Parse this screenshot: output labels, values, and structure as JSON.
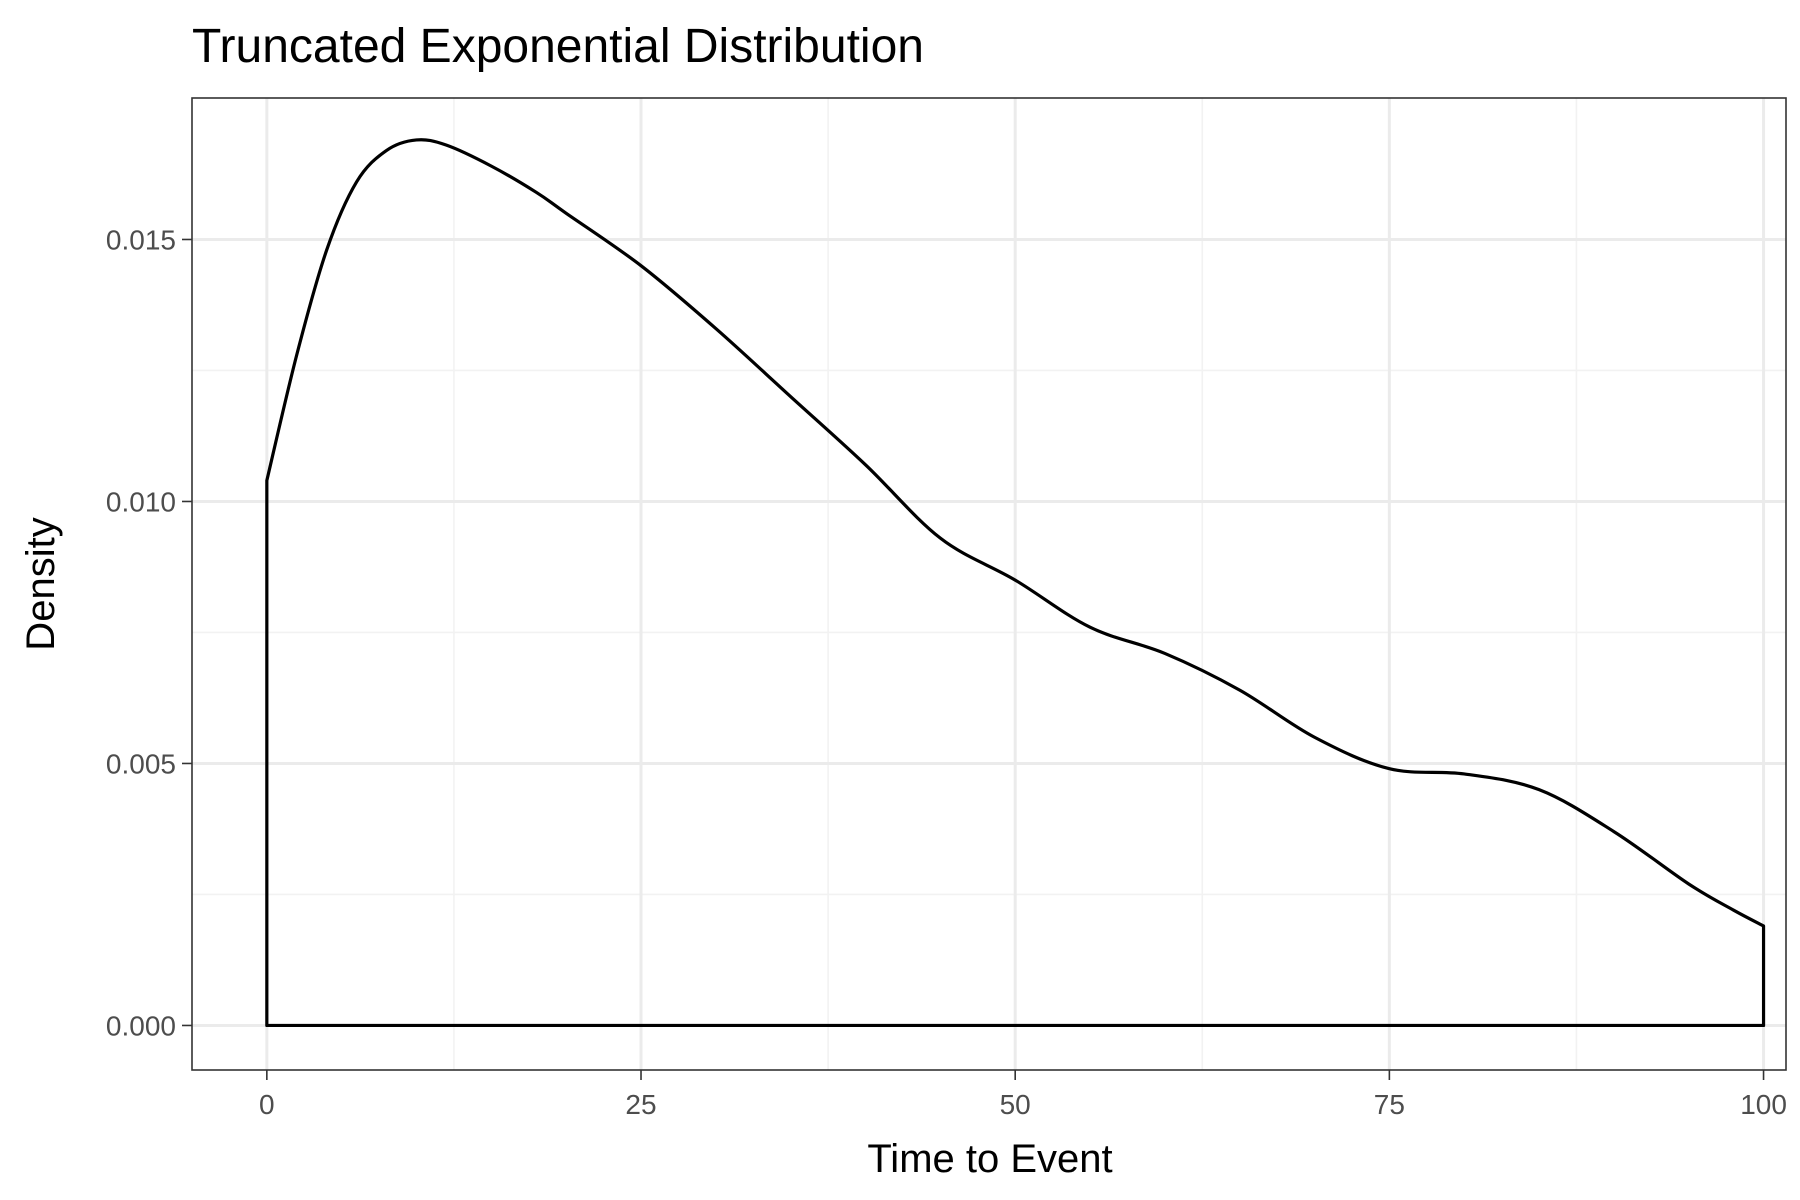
{
  "chart_data": {
    "type": "line",
    "title": "Truncated Exponential Distribution",
    "xlabel": "Time to Event",
    "ylabel": "Density",
    "xlim": [
      -5,
      101.5
    ],
    "ylim": [
      -0.00085,
      0.0177
    ],
    "x_ticks": [
      0,
      25,
      50,
      75,
      100
    ],
    "x_tick_labels": [
      "0",
      "25",
      "50",
      "75",
      "100"
    ],
    "y_ticks": [
      0,
      0.005,
      0.01,
      0.015
    ],
    "y_tick_labels": [
      "0.000",
      "0.005",
      "0.010",
      "0.015"
    ],
    "x_minor_ticks": [
      12.5,
      37.5,
      62.5,
      87.5
    ],
    "y_minor_ticks": [
      0.0025,
      0.0075,
      0.0125
    ],
    "grid": true,
    "legend": "none",
    "series": [
      {
        "x": [
          0,
          2,
          4,
          6,
          8,
          10,
          12,
          15,
          18,
          20,
          25,
          30,
          35,
          40,
          45,
          50,
          55,
          60,
          65,
          70,
          75,
          80,
          85,
          90,
          95,
          98,
          100
        ],
        "y": [
          0.0104,
          0.0128,
          0.0148,
          0.0161,
          0.0167,
          0.0169,
          0.0168,
          0.0164,
          0.0159,
          0.0155,
          0.0145,
          0.0133,
          0.012,
          0.0107,
          0.0093,
          0.0085,
          0.0076,
          0.0071,
          0.0064,
          0.0055,
          0.0049,
          0.0048,
          0.0045,
          0.0037,
          0.0027,
          0.0022,
          0.0019
        ]
      }
    ],
    "colors": {
      "line": "#000000",
      "panel_border": "#333333",
      "grid_major": "#ebebeb",
      "grid_minor": "#f2f2f2",
      "tick_text": "#4d4d4d",
      "tick_mark": "#333333",
      "background": "#ffffff"
    }
  }
}
